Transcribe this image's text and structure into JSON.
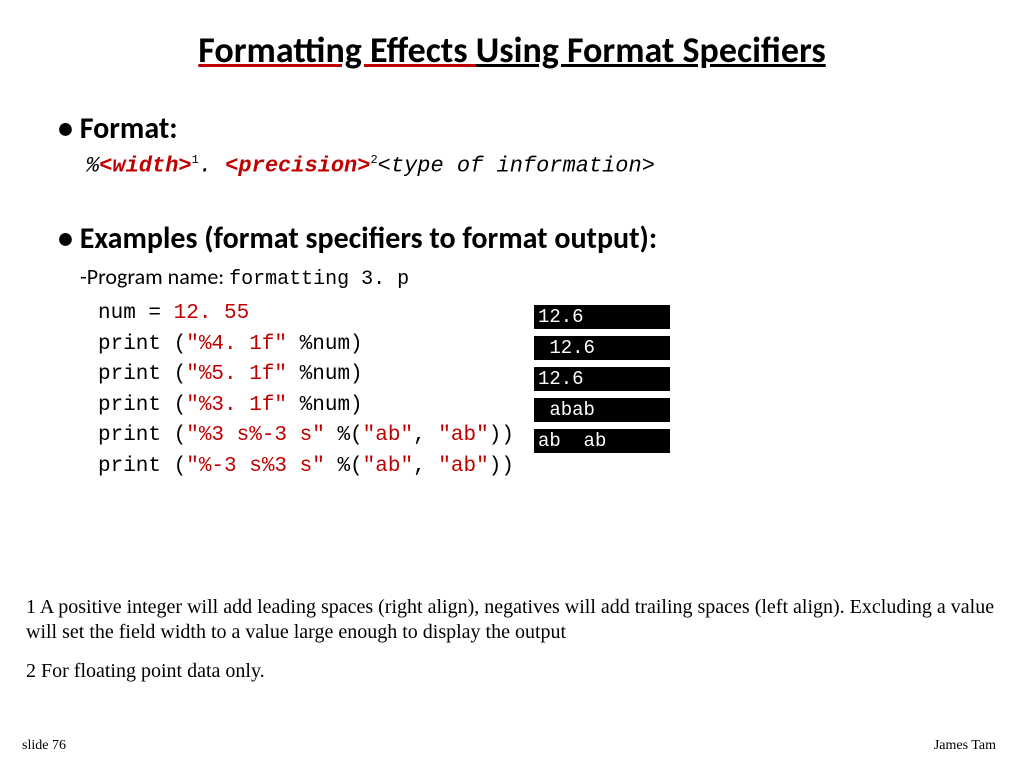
{
  "title": {
    "part1": "Formatting Effects ",
    "part2": "Using Format Specifiers"
  },
  "bullets": {
    "format_label": "• Format:",
    "format_spec": {
      "pct": "%",
      "width": "<width>",
      "sup1": "1",
      "dot": ". ",
      "precision": "<precision>",
      "sup2": "2",
      "tail": "<type of information>"
    },
    "examples_label": "• Examples (format specifiers to format output):",
    "program_label": "-Program name: ",
    "program_name": "formatting 3. p"
  },
  "code": {
    "l1a": "num = ",
    "l1b": "12. 55",
    "l2a": "print (",
    "l2b": "\"%4. 1f\"",
    "l2c": " %num)",
    "l3a": "print (",
    "l3b": "\"%5. 1f\"",
    "l3c": " %num)",
    "l4a": "print (",
    "l4b": "\"%3. 1f\"",
    "l4c": " %num)",
    "l5a": "print (",
    "l5b": "\"%3 s%-3 s\"",
    "l5c": " %(",
    "l5d": "\"ab\"",
    "l5e": ", ",
    "l5f": "\"ab\"",
    "l5g": "))",
    "l6a": "print (",
    "l6b": "\"%-3 s%3 s\"",
    "l6c": " %(",
    "l6d": "\"ab\"",
    "l6e": ", ",
    "l6f": "\"ab\"",
    "l6g": "))"
  },
  "output": {
    "o1": "12.6",
    "o2": " 12.6",
    "o3": "12.6",
    "o4": " abab",
    "o5": "ab  ab"
  },
  "footnotes": {
    "f1": "1 A positive integer will add leading spaces (right align), negatives will add trailing spaces (left align). Excluding a value will set the field width to a value large enough to display the output",
    "f2": "2 For floating point data only."
  },
  "slide_number": "slide 76",
  "author": "James Tam",
  "colors": {
    "red": "#c00000",
    "black": "#000000",
    "background": "#ffffff",
    "output_bg": "#000000",
    "output_fg": "#ffffff"
  }
}
